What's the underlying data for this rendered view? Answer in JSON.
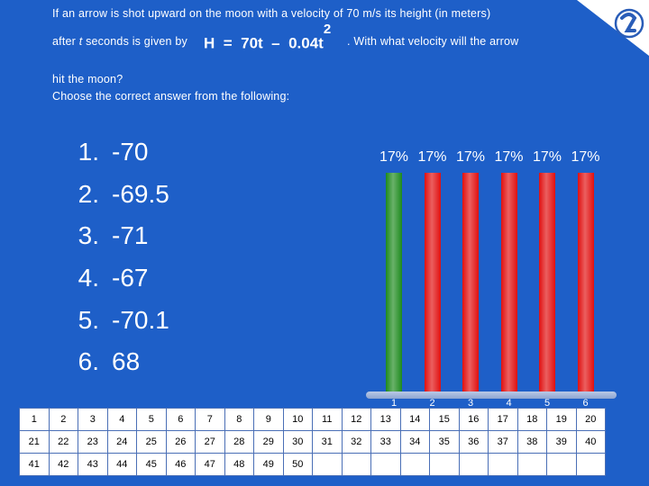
{
  "question": {
    "line1": "If an arrow is shot upward on the moon with a velocity of 70 m/s its height (in meters)",
    "line2_prefix": "after",
    "line2_var": "t",
    "line2_mid": "seconds is given by",
    "formula": {
      "lhs": "H",
      "eq": "=",
      "term1": "70t",
      "minus": "–",
      "term2": "0.04t",
      "exp": "2"
    },
    "line2_suffix": ". With what velocity will the arrow",
    "line3": "hit the moon?",
    "line4": "Choose the correct answer from the following:"
  },
  "answers": [
    {
      "num": "1.",
      "text": "-70"
    },
    {
      "num": "2.",
      "text": "-69.5"
    },
    {
      "num": "3.",
      "text": "-71"
    },
    {
      "num": "4.",
      "text": "-67"
    },
    {
      "num": "5.",
      "text": "-70.1"
    },
    {
      "num": "6.",
      "text": "68"
    }
  ],
  "chart_data": {
    "type": "bar",
    "categories": [
      "1",
      "2",
      "3",
      "4",
      "5",
      "6"
    ],
    "values": [
      17,
      17,
      17,
      17,
      17,
      17
    ],
    "data_labels": [
      "17%",
      "17%",
      "17%",
      "17%",
      "17%",
      "17%"
    ],
    "colors": [
      "#1e8a1e",
      "#e01010",
      "#e01010",
      "#e01010",
      "#e01010",
      "#e01010"
    ],
    "ylim": [
      0,
      100
    ],
    "title": "",
    "xlabel": "",
    "ylabel": ""
  },
  "keypad": {
    "rows": [
      [
        "1",
        "2",
        "3",
        "4",
        "5",
        "6",
        "7",
        "8",
        "9",
        "10",
        "11",
        "12",
        "13",
        "14",
        "15",
        "16",
        "17",
        "18",
        "19",
        "20"
      ],
      [
        "21",
        "22",
        "23",
        "24",
        "25",
        "26",
        "27",
        "28",
        "29",
        "30",
        "31",
        "32",
        "33",
        "34",
        "35",
        "36",
        "37",
        "38",
        "39",
        "40"
      ],
      [
        "41",
        "42",
        "43",
        "44",
        "45",
        "46",
        "47",
        "48",
        "49",
        "50",
        "",
        "",
        "",
        "",
        "",
        "",
        "",
        "",
        "",
        ""
      ]
    ]
  },
  "colors": {
    "background": "#1e5fc8",
    "correct_bar": "#1e8a1e",
    "other_bar": "#e01010"
  },
  "logo_icon": "turning-point-logo-icon"
}
